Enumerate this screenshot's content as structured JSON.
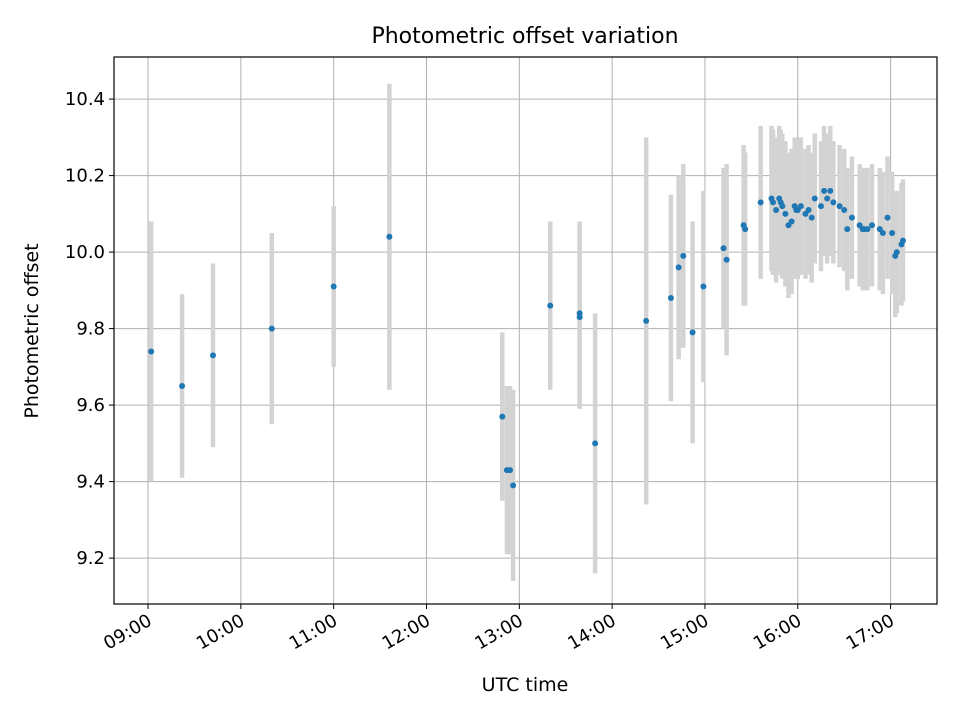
{
  "chart_data": {
    "type": "scatter",
    "title": "Photometric offset variation",
    "xlabel": "UTC time",
    "ylabel": "Photometric offset",
    "xlim": [
      "08:38",
      "17:30"
    ],
    "ylim": [
      9.08,
      10.51
    ],
    "x_ticks": [
      "09:00",
      "10:00",
      "11:00",
      "12:00",
      "13:00",
      "14:00",
      "15:00",
      "16:00",
      "17:00"
    ],
    "y_ticks": [
      9.2,
      9.4,
      9.6,
      9.8,
      10.0,
      10.2,
      10.4
    ],
    "grid": true,
    "legend": "none",
    "colors": {
      "points": "#1f77b4",
      "error_bars": "#d3d3d3",
      "grid": "#b0b0b0"
    },
    "series": [
      {
        "x": [
          "09:02",
          "09:22",
          "09:42",
          "10:20",
          "11:00",
          "11:36",
          "12:49",
          "12:52",
          "12:54",
          "12:56",
          "13:20",
          "13:39",
          "13:39",
          "13:49",
          "14:22",
          "14:38",
          "14:43",
          "14:46",
          "14:52",
          "14:59",
          "15:12",
          "15:14",
          "15:25",
          "15:26",
          "15:36",
          "15:43",
          "15:44",
          "15:46",
          "15:48",
          "15:49",
          "15:50",
          "15:52",
          "15:54",
          "15:56",
          "15:58",
          "15:59",
          "16:00",
          "16:02",
          "16:05",
          "16:07",
          "16:09",
          "16:11",
          "16:15",
          "16:17",
          "16:19",
          "16:21",
          "16:23",
          "16:27",
          "16:30",
          "16:32",
          "16:35",
          "16:40",
          "16:42",
          "16:43",
          "16:45",
          "16:48",
          "16:53",
          "16:55",
          "16:58",
          "17:01",
          "17:03",
          "17:04",
          "17:07",
          "17:08"
        ],
        "y": [
          9.74,
          9.65,
          9.73,
          9.8,
          9.91,
          10.04,
          9.57,
          9.43,
          9.43,
          9.39,
          9.86,
          9.84,
          9.83,
          9.5,
          9.82,
          9.88,
          9.96,
          9.99,
          9.79,
          9.91,
          10.01,
          9.98,
          10.07,
          10.06,
          10.13,
          10.14,
          10.13,
          10.11,
          10.14,
          10.13,
          10.12,
          10.1,
          10.07,
          10.08,
          10.12,
          10.11,
          10.11,
          10.12,
          10.1,
          10.11,
          10.09,
          10.14,
          10.12,
          10.16,
          10.14,
          10.16,
          10.13,
          10.12,
          10.11,
          10.06,
          10.09,
          10.07,
          10.06,
          10.06,
          10.06,
          10.07,
          10.06,
          10.05,
          10.09,
          10.05,
          9.99,
          10.0,
          10.02,
          10.03
        ],
        "yerr": [
          0.34,
          0.24,
          0.24,
          0.25,
          0.21,
          0.4,
          0.22,
          0.22,
          0.22,
          0.25,
          0.22,
          0.24,
          0.24,
          0.34,
          0.48,
          0.27,
          0.24,
          0.24,
          0.29,
          0.25,
          0.21,
          0.25,
          0.21,
          0.2,
          0.2,
          0.19,
          0.19,
          0.19,
          0.19,
          0.19,
          0.19,
          0.19,
          0.19,
          0.19,
          0.18,
          0.18,
          0.18,
          0.18,
          0.17,
          0.17,
          0.17,
          0.17,
          0.17,
          0.17,
          0.17,
          0.17,
          0.16,
          0.16,
          0.16,
          0.16,
          0.16,
          0.16,
          0.16,
          0.16,
          0.16,
          0.16,
          0.16,
          0.16,
          0.16,
          0.16,
          0.16,
          0.16,
          0.16,
          0.16
        ]
      }
    ]
  }
}
